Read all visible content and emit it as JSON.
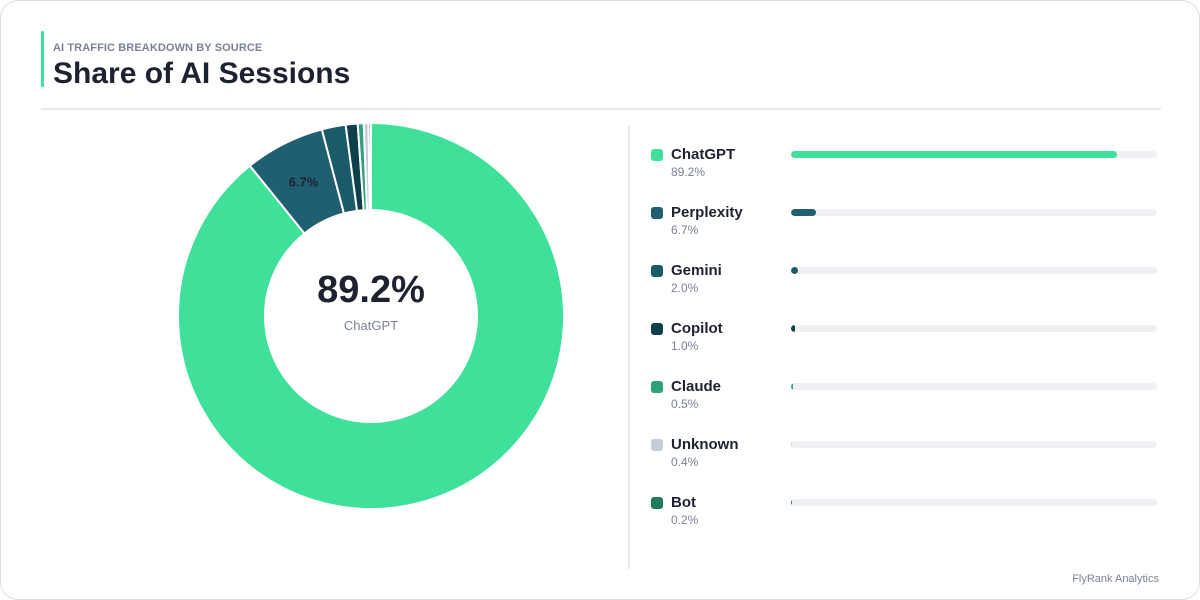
{
  "header": {
    "subtitle": "AI TRAFFIC BREAKDOWN BY SOURCE",
    "title": "Share of AI Sessions"
  },
  "center": {
    "value": "89.2%",
    "label": "ChatGPT"
  },
  "footer": "FlyRank Analytics",
  "colors": {
    "accent": "#3ee09a",
    "track": "#eef0f4"
  },
  "chart_data": {
    "type": "pie",
    "donut": true,
    "categories": [
      "ChatGPT",
      "Perplexity",
      "Gemini",
      "Copilot",
      "Claude",
      "Unknown",
      "Bot"
    ],
    "values": [
      89.2,
      6.7,
      2.0,
      1.0,
      0.5,
      0.4,
      0.2
    ],
    "value_labels": [
      "89.2%",
      "6.7%",
      "2.0%",
      "1.0%",
      "0.5%",
      "0.4%",
      "0.2%"
    ],
    "colors": [
      "#3ee09a",
      "#1f5f71",
      "#1b5a69",
      "#0f3f4a",
      "#2ea07c",
      "#c5ccd8",
      "#227a5d"
    ],
    "slice_labels_shown": [
      "",
      "6.7%",
      "",
      "",
      "",
      "",
      ""
    ],
    "legend_position": "right",
    "title": "Share of AI Sessions",
    "subtitle": "AI TRAFFIC BREAKDOWN BY SOURCE"
  }
}
